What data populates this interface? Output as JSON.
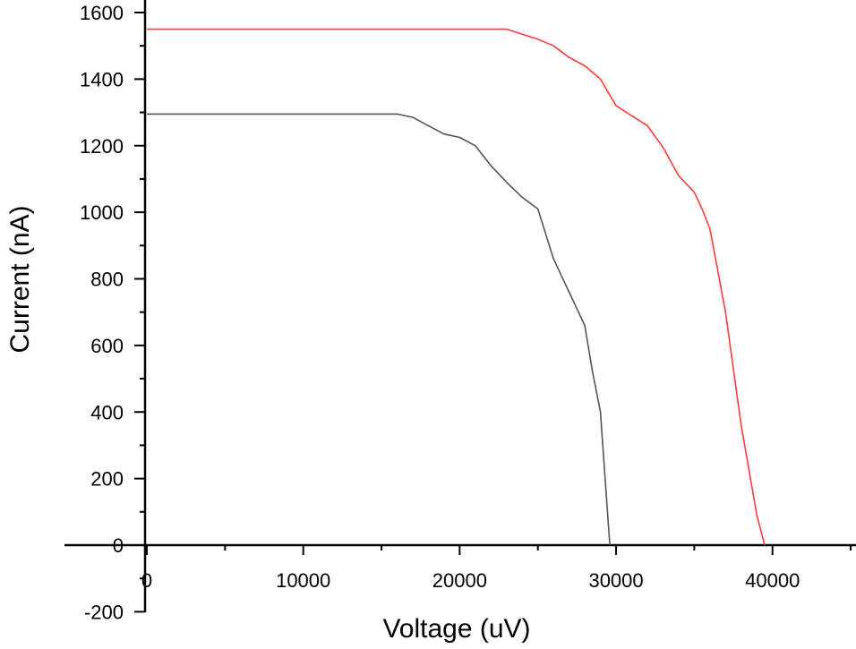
{
  "chart_data": {
    "type": "line",
    "xlabel": "Voltage (uV)",
    "ylabel": "Current (nA)",
    "xlim": [
      0,
      45000
    ],
    "ylim": [
      -200,
      1600
    ],
    "x_ticks": [
      0,
      10000,
      20000,
      30000,
      40000
    ],
    "x_tick_labels": [
      "0",
      "10000",
      "20000",
      "30000",
      "40000"
    ],
    "y_ticks": [
      -200,
      0,
      200,
      400,
      600,
      800,
      1000,
      1200,
      1400,
      1600
    ],
    "y_tick_labels": [
      "-200",
      "0",
      "200",
      "400",
      "600",
      "800",
      "1000",
      "1200",
      "1400",
      "1600"
    ],
    "grid": false,
    "legend": false,
    "series": [
      {
        "color": "#ff3b3b",
        "x": [
          0,
          23000,
          24000,
          25000,
          26000,
          27000,
          28000,
          28500,
          29000,
          29500,
          30000,
          31000,
          32000,
          33000,
          34000,
          35000,
          35500,
          36000,
          37000,
          38000,
          39000,
          39500
        ],
        "y": [
          1550,
          1550,
          1535,
          1520,
          1500,
          1465,
          1440,
          1420,
          1400,
          1360,
          1320,
          1290,
          1260,
          1195,
          1110,
          1060,
          1010,
          950,
          700,
          360,
          90,
          0
        ]
      },
      {
        "color": "#555555",
        "x": [
          0,
          16000,
          17000,
          18000,
          19000,
          20000,
          21000,
          22000,
          23000,
          24000,
          25000,
          26000,
          27000,
          28000,
          28500,
          29000,
          29300,
          29600
        ],
        "y": [
          1295,
          1295,
          1285,
          1260,
          1235,
          1225,
          1200,
          1140,
          1090,
          1045,
          1010,
          860,
          760,
          660,
          520,
          400,
          200,
          0
        ]
      }
    ]
  }
}
